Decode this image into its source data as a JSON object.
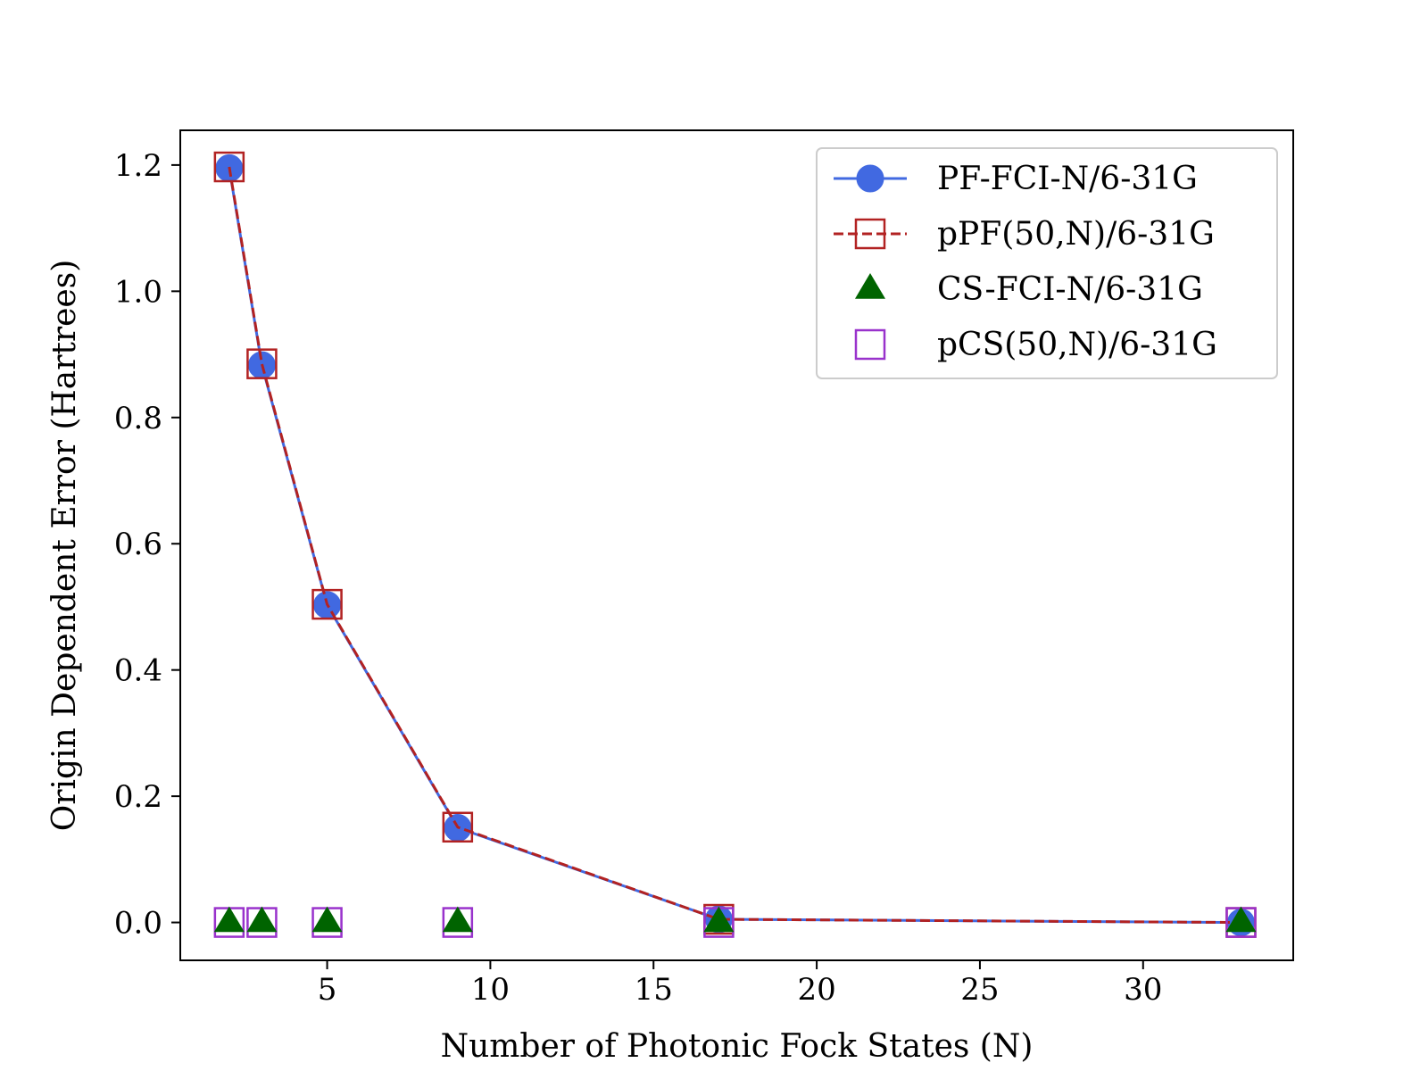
{
  "chart_data": {
    "type": "line",
    "xlabel": "Number of Photonic Fock States (N)",
    "ylabel": "Origin Dependent Error (Hartrees)",
    "xlim": [
      0.5,
      34.6
    ],
    "ylim": [
      -0.06,
      1.255
    ],
    "xticks": [
      5,
      10,
      15,
      20,
      25,
      30
    ],
    "xtick_labels": [
      "5",
      "10",
      "15",
      "20",
      "25",
      "30"
    ],
    "yticks": [
      0.0,
      0.2,
      0.4,
      0.6,
      0.8,
      1.0,
      1.2
    ],
    "ytick_labels": [
      "0.0",
      "0.2",
      "0.4",
      "0.6",
      "0.8",
      "1.0",
      "1.2"
    ],
    "grid": false,
    "legend_position": "top-right",
    "series": [
      {
        "name": "PF-FCI-N/6-31G",
        "marker": "circle",
        "line": "solid",
        "color": "#4169e1",
        "x": [
          2,
          3,
          5,
          9,
          17,
          33
        ],
        "y": [
          1.195,
          0.883,
          0.503,
          0.15,
          0.005,
          0.0
        ]
      },
      {
        "name": "pPF(50,N)/6-31G",
        "marker": "open-square",
        "line": "dashed",
        "color": "#b22222",
        "x": [
          2,
          3,
          5,
          9,
          17,
          33
        ],
        "y": [
          1.197,
          0.885,
          0.504,
          0.151,
          0.005,
          0.0
        ]
      },
      {
        "name": "CS-FCI-N/6-31G",
        "marker": "triangle",
        "line": "none",
        "color": "#006400",
        "x": [
          2,
          3,
          5,
          9,
          17,
          33
        ],
        "y": [
          0.0,
          0.0,
          0.0,
          0.0,
          0.0,
          0.0
        ]
      },
      {
        "name": "pCS(50,N)/6-31G",
        "marker": "open-square",
        "line": "none",
        "color": "#9932cc",
        "x": [
          2,
          3,
          5,
          9,
          17,
          33
        ],
        "y": [
          0.0,
          0.0,
          0.0,
          0.0,
          0.0,
          0.0
        ]
      }
    ]
  }
}
